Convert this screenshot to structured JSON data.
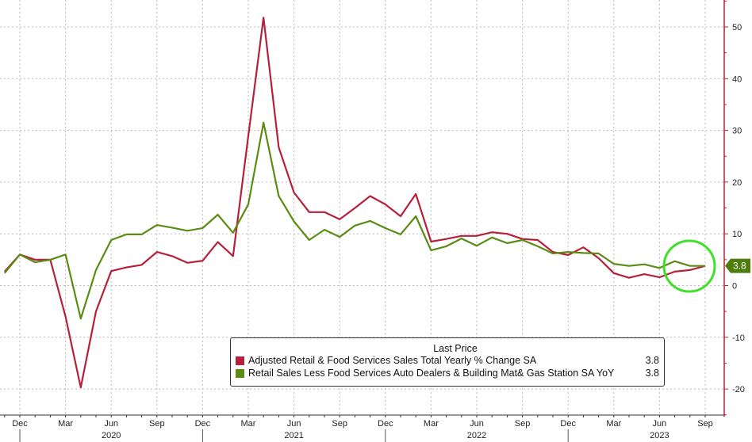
{
  "colors": {
    "red": "#b5213a",
    "green": "#5b8c12",
    "highlight": "#3fe02a",
    "tag": "#4f7d0d"
  },
  "chart_data": {
    "type": "line",
    "title": "",
    "xlabel": "",
    "ylabel": "",
    "ylim": [
      -25,
      55
    ],
    "yticks": [
      50,
      40,
      30,
      20,
      10,
      0,
      -10,
      -20
    ],
    "grid": true,
    "x": [
      "2019-11",
      "2019-12",
      "2020-01",
      "2020-02",
      "2020-03",
      "2020-04",
      "2020-05",
      "2020-06",
      "2020-07",
      "2020-08",
      "2020-09",
      "2020-10",
      "2020-11",
      "2020-12",
      "2021-01",
      "2021-02",
      "2021-03",
      "2021-04",
      "2021-05",
      "2021-06",
      "2021-07",
      "2021-08",
      "2021-09",
      "2021-10",
      "2021-11",
      "2021-12",
      "2022-01",
      "2022-02",
      "2022-03",
      "2022-04",
      "2022-05",
      "2022-06",
      "2022-07",
      "2022-08",
      "2022-09",
      "2022-10",
      "2022-11",
      "2022-12",
      "2023-01",
      "2023-02",
      "2023-03",
      "2023-04",
      "2023-05",
      "2023-06",
      "2023-07",
      "2023-08",
      "2023-09"
    ],
    "xticks": [
      {
        "label": "Dec",
        "i": 1
      },
      {
        "label": "Mar",
        "i": 4
      },
      {
        "label": "Jun",
        "i": 7
      },
      {
        "label": "Sep",
        "i": 10
      },
      {
        "label": "Dec",
        "i": 13
      },
      {
        "label": "Mar",
        "i": 16
      },
      {
        "label": "Jun",
        "i": 19
      },
      {
        "label": "Sep",
        "i": 22
      },
      {
        "label": "Dec",
        "i": 25
      },
      {
        "label": "Mar",
        "i": 28
      },
      {
        "label": "Jun",
        "i": 31
      },
      {
        "label": "Sep",
        "i": 34
      },
      {
        "label": "Dec",
        "i": 37
      },
      {
        "label": "Mar",
        "i": 40
      },
      {
        "label": "Jun",
        "i": 43
      },
      {
        "label": "Sep",
        "i": 46
      }
    ],
    "years": [
      {
        "label": "2020",
        "i": 7
      },
      {
        "label": "2021",
        "i": 19
      },
      {
        "label": "2022",
        "i": 31
      },
      {
        "label": "2023",
        "i": 43
      }
    ],
    "year_separators": [
      1,
      13,
      25,
      37
    ],
    "series": [
      {
        "name": "Adjusted Retail & Food Services Sales Total Yearly % Change SA",
        "color": "#b5213a",
        "last": "3.8",
        "values": [
          2.7,
          6.0,
          5.0,
          5.0,
          -6.0,
          -19.7,
          -5.0,
          2.8,
          3.5,
          4.0,
          6.5,
          5.7,
          4.4,
          4.8,
          8.4,
          5.7,
          28.9,
          51.8,
          26.7,
          18.0,
          14.2,
          14.2,
          12.8,
          15.0,
          17.3,
          15.7,
          13.4,
          17.7,
          8.5,
          9.0,
          9.6,
          9.6,
          10.3,
          10.0,
          9.0,
          8.8,
          6.5,
          5.9,
          7.4,
          5.3,
          2.4,
          1.5,
          2.2,
          1.6,
          2.7,
          3.0,
          3.8
        ]
      },
      {
        "name": "Retail Sales Less Food Services Auto Dealers & Building Mat& Gas Station SA YoY",
        "color": "#5b8c12",
        "last": "3.8",
        "values": [
          2.4,
          6.0,
          4.5,
          5.0,
          6.0,
          -6.4,
          3.0,
          8.8,
          9.9,
          9.9,
          11.7,
          11.2,
          10.6,
          11.1,
          13.7,
          10.2,
          15.7,
          31.5,
          17.3,
          12.4,
          8.8,
          10.8,
          9.4,
          11.6,
          12.5,
          11.1,
          9.9,
          13.4,
          6.8,
          7.6,
          9.1,
          7.7,
          9.3,
          8.2,
          8.8,
          7.6,
          6.2,
          6.5,
          6.3,
          6.2,
          4.2,
          3.8,
          4.1,
          3.4,
          4.7,
          3.8,
          3.8
        ]
      }
    ],
    "legend": {
      "title": "Last Price",
      "placement": "bottom-right"
    },
    "last_value_tag": "3.8"
  }
}
